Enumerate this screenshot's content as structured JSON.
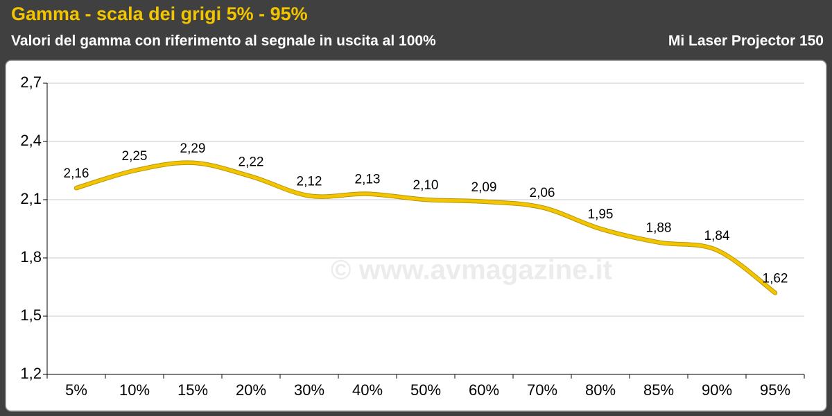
{
  "chart_data": {
    "type": "line",
    "title": "Gamma - scala dei grigi 5% - 95%",
    "subtitle": "Valori del gamma con riferimento al segnale in uscita al 100%",
    "device": "Mi Laser Projector 150",
    "watermark": "© www.avmagazine.it",
    "categories": [
      "5%",
      "10%",
      "15%",
      "20%",
      "30%",
      "40%",
      "50%",
      "60%",
      "70%",
      "80%",
      "85%",
      "90%",
      "95%"
    ],
    "series": [
      {
        "color": "#f2c500",
        "values": [
          2.16,
          2.25,
          2.29,
          2.22,
          2.12,
          2.13,
          2.1,
          2.09,
          2.06,
          1.95,
          1.88,
          1.84,
          1.62
        ],
        "value_labels": [
          "2,16",
          "2,25",
          "2,29",
          "2,22",
          "2,12",
          "2,13",
          "2,10",
          "2,09",
          "2,06",
          "1,95",
          "1,88",
          "1,84",
          "1,62"
        ]
      }
    ],
    "ylim": [
      1.2,
      2.7
    ],
    "yticks": [
      {
        "value": 1.2,
        "label": "1,2"
      },
      {
        "value": 1.5,
        "label": "1,5"
      },
      {
        "value": 1.8,
        "label": "1,8"
      },
      {
        "value": 2.1,
        "label": "2,1"
      },
      {
        "value": 2.4,
        "label": "2,4"
      },
      {
        "value": 2.7,
        "label": "2,7"
      }
    ],
    "grid": true
  }
}
